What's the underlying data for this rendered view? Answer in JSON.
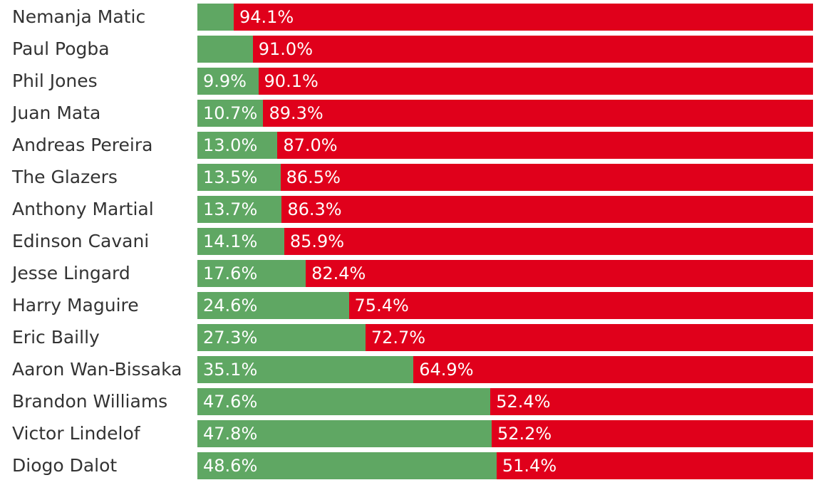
{
  "colors": {
    "green": "#5fa763",
    "red": "#e0001b",
    "label_text": "#333333",
    "value_text": "#ffffff"
  },
  "chart_data": {
    "type": "bar",
    "orientation": "horizontal",
    "stacked": true,
    "percent_stacked": true,
    "xlim": [
      0,
      100
    ],
    "categories": [
      "Nemanja Matic",
      "Paul Pogba",
      "Phil Jones",
      "Juan Mata",
      "Andreas Pereira",
      "The Glazers",
      "Anthony Martial",
      "Edinson Cavani",
      "Jesse Lingard",
      "Harry Maguire",
      "Eric Bailly",
      "Aaron Wan-Bissaka",
      "Brandon Williams",
      "Victor Lindelof",
      "Diogo Dalot"
    ],
    "series": [
      {
        "color": "#5fa763",
        "values": [
          5.9,
          9.0,
          9.9,
          10.7,
          13.0,
          13.5,
          13.7,
          14.1,
          17.6,
          24.6,
          27.3,
          35.1,
          47.6,
          47.8,
          48.6
        ],
        "value_labels": [
          "",
          "",
          "9.9%",
          "10.7%",
          "13.0%",
          "13.5%",
          "13.7%",
          "14.1%",
          "17.6%",
          "24.6%",
          "27.3%",
          "35.1%",
          "47.6%",
          "47.8%",
          "48.6%"
        ]
      },
      {
        "color": "#e0001b",
        "values": [
          94.1,
          91.0,
          90.1,
          89.3,
          87.0,
          86.5,
          86.3,
          85.9,
          82.4,
          75.4,
          72.7,
          64.9,
          52.4,
          52.2,
          51.4
        ],
        "value_labels": [
          "94.1%",
          "91.0%",
          "90.1%",
          "89.3%",
          "87.0%",
          "86.5%",
          "86.3%",
          "85.9%",
          "82.4%",
          "75.4%",
          "72.7%",
          "64.9%",
          "52.4%",
          "52.2%",
          "51.4%"
        ]
      }
    ]
  }
}
